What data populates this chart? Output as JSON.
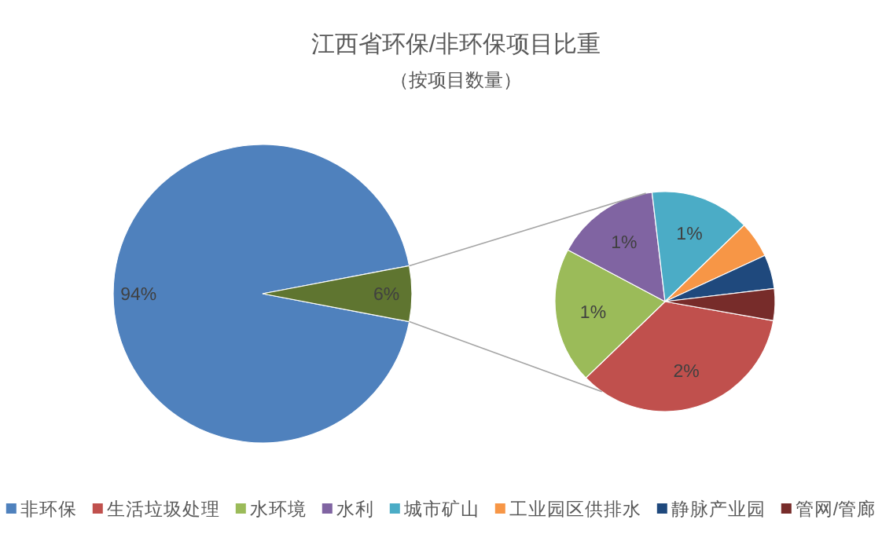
{
  "chart_data": [
    {
      "type": "pie",
      "title": "江西省环保/非环保项目比重",
      "subtitle": "（按项目数量）",
      "categories": [
        "非环保",
        null
      ],
      "values": [
        94,
        6
      ],
      "colors": [
        "#4f81bd",
        "#5f7530"
      ],
      "value_labels": [
        "94%",
        "6%"
      ],
      "legend": "bottom"
    },
    {
      "type": "pie",
      "categories": [
        "生活垃圾处理",
        "水环境",
        "水利",
        "城市矿山",
        "工业园区供排水",
        "静脉产业园",
        "管网/管廊"
      ],
      "values": [
        2.1,
        1.2,
        0.92,
        0.88,
        0.32,
        0.3,
        0.28
      ],
      "colors": [
        "#c0504d",
        "#9bbb59",
        "#8064a2",
        "#4bacc6",
        "#f79646",
        "#1f497d",
        "#772c2a"
      ],
      "value_labels": [
        "2%",
        "1%",
        "1%",
        "1%",
        null,
        null,
        null
      ],
      "legend": "bottom"
    }
  ]
}
